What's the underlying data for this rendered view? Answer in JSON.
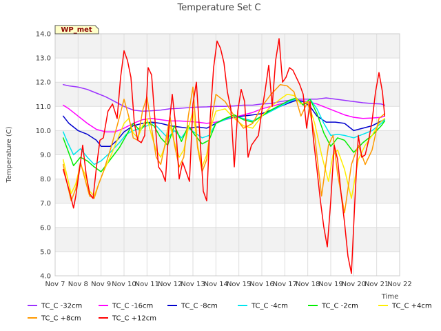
{
  "chart_data": {
    "type": "line",
    "title": "Temperature Set C",
    "site_label": "WP_met",
    "xlabel": "Time",
    "ylabel": "Temperature (C)",
    "ylim": [
      4.0,
      14.0
    ],
    "yticks": [
      "4.0",
      "5.0",
      "6.0",
      "7.0",
      "8.0",
      "9.0",
      "10.0",
      "11.0",
      "12.0",
      "13.0",
      "14.0"
    ],
    "xlim": [
      7,
      22
    ],
    "xticks": [
      "Nov 7",
      "Nov 8",
      "Nov 9",
      "Nov 10",
      "Nov 11",
      "Nov 12",
      "Nov 13",
      "Nov 14",
      "Nov 15",
      "Nov 16",
      "Nov 17",
      "Nov 18",
      "Nov 19",
      "Nov 20",
      "Nov 21",
      "Nov 22"
    ],
    "grid": true,
    "legend_position": "bottom",
    "series": [
      {
        "name": "TC_C -32cm",
        "color": "#9b30ff",
        "x": [
          7.35,
          7.6,
          8.0,
          8.4,
          8.8,
          9.2,
          9.6,
          10.0,
          10.4,
          10.8,
          11.2,
          11.6,
          12.0,
          12.4,
          12.8,
          13.2,
          13.6,
          14.0,
          14.4,
          14.8,
          15.2,
          15.6,
          16.0,
          16.4,
          16.8,
          17.2,
          17.6,
          18.0,
          18.4,
          18.8,
          19.2,
          19.6,
          20.0,
          20.4,
          20.8,
          21.2,
          21.35
        ],
        "y": [
          11.9,
          11.85,
          11.8,
          11.7,
          11.55,
          11.4,
          11.2,
          11.0,
          10.85,
          10.8,
          10.82,
          10.85,
          10.9,
          10.92,
          10.95,
          10.97,
          10.98,
          11.0,
          11.0,
          11.02,
          11.05,
          11.05,
          11.1,
          11.12,
          11.2,
          11.25,
          11.3,
          11.3,
          11.3,
          11.35,
          11.3,
          11.25,
          11.2,
          11.15,
          11.12,
          11.1,
          11.05
        ]
      },
      {
        "name": "TC_C -16cm",
        "color": "#ff00ff",
        "x": [
          7.35,
          7.6,
          8.0,
          8.4,
          8.8,
          9.2,
          9.6,
          10.0,
          10.4,
          10.8,
          11.2,
          11.6,
          12.0,
          12.4,
          12.8,
          13.2,
          13.6,
          14.0,
          14.4,
          14.8,
          15.2,
          15.6,
          16.0,
          16.4,
          16.8,
          17.2,
          17.6,
          18.0,
          18.4,
          18.8,
          19.2,
          19.6,
          20.0,
          20.4,
          20.8,
          21.2,
          21.35
        ],
        "y": [
          11.05,
          10.9,
          10.6,
          10.3,
          10.05,
          9.95,
          9.95,
          10.1,
          10.3,
          10.45,
          10.5,
          10.45,
          10.4,
          10.4,
          10.38,
          10.35,
          10.3,
          10.35,
          10.45,
          10.55,
          10.65,
          10.75,
          10.9,
          11.0,
          11.1,
          11.2,
          11.25,
          11.2,
          11.1,
          10.95,
          10.8,
          10.65,
          10.55,
          10.5,
          10.52,
          10.55,
          10.6
        ]
      },
      {
        "name": "TC_C -8cm",
        "color": "#0000cd",
        "x": [
          7.35,
          7.6,
          8.0,
          8.4,
          8.8,
          9.0,
          9.4,
          9.7,
          10.0,
          10.4,
          10.8,
          11.2,
          11.6,
          12.0,
          12.4,
          12.8,
          13.2,
          13.6,
          14.0,
          14.4,
          14.8,
          15.2,
          15.6,
          16.0,
          16.4,
          16.8,
          17.2,
          17.5,
          17.8,
          18.1,
          18.4,
          18.8,
          19.2,
          19.6,
          20.0,
          20.4,
          20.8,
          21.2,
          21.35
        ],
        "y": [
          10.6,
          10.3,
          10.0,
          9.85,
          9.6,
          9.35,
          9.35,
          9.6,
          9.95,
          10.2,
          10.3,
          10.35,
          10.3,
          10.2,
          10.15,
          10.1,
          10.15,
          10.1,
          10.3,
          10.5,
          10.55,
          10.6,
          10.65,
          10.7,
          10.85,
          11.0,
          11.15,
          11.25,
          11.2,
          11.0,
          10.6,
          10.35,
          10.35,
          10.3,
          10.0,
          10.1,
          10.2,
          10.4,
          10.45
        ]
      },
      {
        "name": "TC_C -4cm",
        "color": "#00e5ee",
        "x": [
          7.35,
          7.55,
          7.8,
          8.1,
          8.4,
          8.7,
          9.0,
          9.4,
          9.8,
          10.1,
          10.4,
          10.7,
          11.0,
          11.3,
          11.6,
          11.9,
          12.2,
          12.5,
          12.8,
          13.1,
          13.4,
          13.7,
          14.0,
          14.4,
          14.8,
          15.2,
          15.6,
          16.0,
          16.4,
          16.8,
          17.2,
          17.5,
          17.8,
          18.1,
          18.4,
          18.7,
          19.0,
          19.3,
          19.6,
          20.0,
          20.4,
          20.8,
          21.2,
          21.35
        ],
        "y": [
          9.95,
          9.5,
          9.0,
          9.25,
          8.9,
          8.6,
          8.75,
          9.1,
          9.5,
          9.85,
          10.0,
          10.1,
          10.2,
          10.3,
          10.0,
          9.7,
          10.0,
          9.7,
          10.1,
          9.9,
          9.7,
          9.8,
          10.3,
          10.45,
          10.6,
          10.5,
          10.4,
          10.6,
          10.8,
          11.0,
          11.2,
          11.3,
          11.1,
          11.3,
          10.9,
          10.3,
          9.8,
          9.85,
          9.8,
          9.7,
          9.85,
          10.0,
          10.3,
          10.45
        ]
      },
      {
        "name": "TC_C -2cm",
        "color": "#00ee00",
        "x": [
          7.35,
          7.55,
          7.8,
          8.1,
          8.4,
          8.7,
          9.0,
          9.4,
          9.8,
          10.1,
          10.4,
          10.7,
          11.0,
          11.3,
          11.6,
          11.9,
          12.2,
          12.5,
          12.8,
          13.1,
          13.4,
          13.7,
          14.0,
          14.4,
          14.8,
          15.2,
          15.6,
          16.0,
          16.4,
          16.8,
          17.2,
          17.5,
          17.8,
          18.1,
          18.4,
          18.7,
          19.0,
          19.3,
          19.6,
          20.0,
          20.4,
          20.8,
          21.2,
          21.35
        ],
        "y": [
          9.7,
          9.2,
          8.55,
          8.9,
          8.75,
          8.5,
          8.3,
          8.8,
          9.3,
          9.8,
          10.3,
          10.0,
          10.35,
          10.2,
          9.7,
          9.4,
          10.2,
          9.55,
          10.2,
          9.8,
          9.45,
          9.6,
          10.3,
          10.5,
          10.65,
          10.45,
          10.35,
          10.6,
          10.85,
          11.05,
          11.25,
          11.35,
          11.05,
          11.3,
          10.7,
          9.9,
          9.35,
          9.7,
          9.6,
          9.1,
          9.5,
          9.8,
          10.2,
          10.4
        ]
      },
      {
        "name": "TC_C +4cm",
        "color": "#ffee00",
        "x": [
          7.35,
          7.5,
          7.7,
          7.9,
          8.1,
          8.3,
          8.5,
          8.7,
          8.9,
          9.1,
          9.4,
          9.7,
          10.0,
          10.2,
          10.4,
          10.6,
          10.8,
          11.0,
          11.2,
          11.4,
          11.6,
          11.8,
          12.0,
          12.2,
          12.4,
          12.6,
          12.8,
          13.0,
          13.2,
          13.4,
          13.6,
          13.8,
          14.0,
          14.4,
          14.8,
          15.2,
          15.6,
          16.0,
          16.4,
          16.8,
          17.1,
          17.4,
          17.7,
          18.0,
          18.3,
          18.6,
          18.9,
          19.1,
          19.3,
          19.6,
          19.9,
          20.2,
          20.5,
          20.8,
          21.1,
          21.35
        ],
        "y": [
          8.8,
          8.2,
          7.4,
          7.8,
          8.6,
          8.2,
          7.5,
          7.3,
          7.8,
          8.3,
          8.9,
          9.6,
          10.3,
          10.5,
          9.9,
          9.7,
          10.2,
          10.5,
          9.8,
          9.2,
          8.9,
          9.4,
          10.2,
          9.5,
          8.9,
          9.2,
          10.1,
          10.8,
          9.4,
          8.5,
          9.0,
          10.2,
          10.8,
          10.9,
          10.5,
          10.2,
          10.1,
          10.6,
          11.0,
          11.3,
          11.5,
          11.45,
          11.1,
          11.2,
          10.3,
          9.0,
          7.9,
          9.0,
          9.2,
          8.4,
          7.2,
          8.8,
          9.4,
          9.8,
          10.3,
          10.5
        ]
      },
      {
        "name": "TC_C +8cm",
        "color": "#ff9900",
        "x": [
          7.35,
          7.5,
          7.7,
          7.9,
          8.1,
          8.3,
          8.5,
          8.7,
          8.9,
          9.1,
          9.4,
          9.7,
          10.0,
          10.2,
          10.4,
          10.6,
          10.8,
          11.0,
          11.2,
          11.4,
          11.6,
          11.8,
          12.0,
          12.2,
          12.4,
          12.6,
          12.8,
          13.0,
          13.2,
          13.4,
          13.6,
          13.8,
          14.0,
          14.4,
          14.8,
          15.2,
          15.6,
          16.0,
          16.4,
          16.8,
          17.1,
          17.4,
          17.7,
          18.0,
          18.3,
          18.6,
          18.9,
          19.1,
          19.3,
          19.6,
          19.9,
          20.2,
          20.5,
          20.8,
          21.1,
          21.35
        ],
        "y": [
          8.6,
          7.9,
          7.1,
          7.6,
          8.7,
          8.0,
          7.3,
          7.2,
          7.8,
          8.3,
          9.2,
          10.2,
          11.3,
          10.6,
          9.7,
          9.6,
          10.8,
          11.4,
          10.1,
          8.9,
          8.6,
          9.5,
          10.6,
          9.4,
          8.5,
          8.9,
          10.6,
          11.8,
          9.3,
          8.3,
          8.8,
          10.4,
          11.5,
          11.2,
          10.6,
          10.1,
          10.3,
          11.0,
          11.5,
          11.9,
          11.85,
          11.6,
          10.6,
          11.2,
          9.8,
          7.3,
          9.4,
          9.8,
          8.2,
          6.6,
          8.6,
          9.4,
          8.6,
          9.2,
          10.5,
          10.7
        ]
      },
      {
        "name": "TC_C +12cm",
        "color": "#ff0000",
        "x": [
          7.35,
          7.5,
          7.65,
          7.8,
          7.9,
          8.05,
          8.2,
          8.35,
          8.5,
          8.65,
          8.8,
          8.95,
          9.1,
          9.3,
          9.5,
          9.7,
          9.85,
          10.0,
          10.15,
          10.3,
          10.45,
          10.6,
          10.75,
          10.9,
          11.05,
          11.2,
          11.35,
          11.5,
          11.65,
          11.8,
          11.95,
          12.1,
          12.25,
          12.4,
          12.55,
          12.7,
          12.85,
          13.0,
          13.15,
          13.3,
          13.45,
          13.6,
          13.75,
          13.9,
          14.05,
          14.2,
          14.35,
          14.5,
          14.65,
          14.8,
          14.95,
          15.1,
          15.25,
          15.4,
          15.55,
          15.7,
          15.85,
          16.0,
          16.15,
          16.3,
          16.45,
          16.6,
          16.75,
          16.9,
          17.05,
          17.2,
          17.35,
          17.5,
          17.65,
          17.8,
          17.95,
          18.1,
          18.25,
          18.4,
          18.55,
          18.7,
          18.85,
          19.0,
          19.15,
          19.3,
          19.45,
          19.6,
          19.75,
          19.9,
          20.05,
          20.2,
          20.35,
          20.5,
          20.65,
          20.8,
          20.95,
          21.1,
          21.25,
          21.35
        ],
        "y": [
          8.4,
          7.9,
          7.4,
          6.8,
          7.3,
          8.3,
          9.4,
          8.2,
          7.4,
          7.2,
          8.5,
          9.6,
          9.7,
          10.8,
          11.1,
          10.5,
          12.2,
          13.3,
          12.9,
          12.2,
          10.3,
          9.6,
          9.5,
          9.8,
          12.6,
          12.3,
          10.4,
          8.5,
          8.3,
          7.9,
          10.1,
          11.5,
          10.2,
          8.0,
          8.7,
          8.3,
          7.9,
          11.1,
          12.0,
          9.8,
          7.5,
          7.1,
          10.5,
          12.6,
          13.7,
          13.4,
          12.8,
          11.6,
          10.9,
          8.5,
          10.8,
          11.7,
          11.2,
          8.9,
          9.4,
          9.6,
          9.8,
          10.8,
          11.7,
          12.7,
          11.0,
          12.9,
          13.8,
          12.0,
          12.2,
          12.6,
          12.5,
          12.2,
          11.9,
          11.5,
          10.1,
          11.2,
          9.6,
          8.4,
          7.1,
          6.0,
          5.2,
          7.1,
          9.4,
          8.8,
          7.4,
          6.2,
          4.8,
          4.1,
          7.1,
          9.8,
          8.9,
          9.0,
          9.6,
          10.4,
          11.6,
          12.4,
          11.6,
          10.6
        ]
      }
    ]
  }
}
